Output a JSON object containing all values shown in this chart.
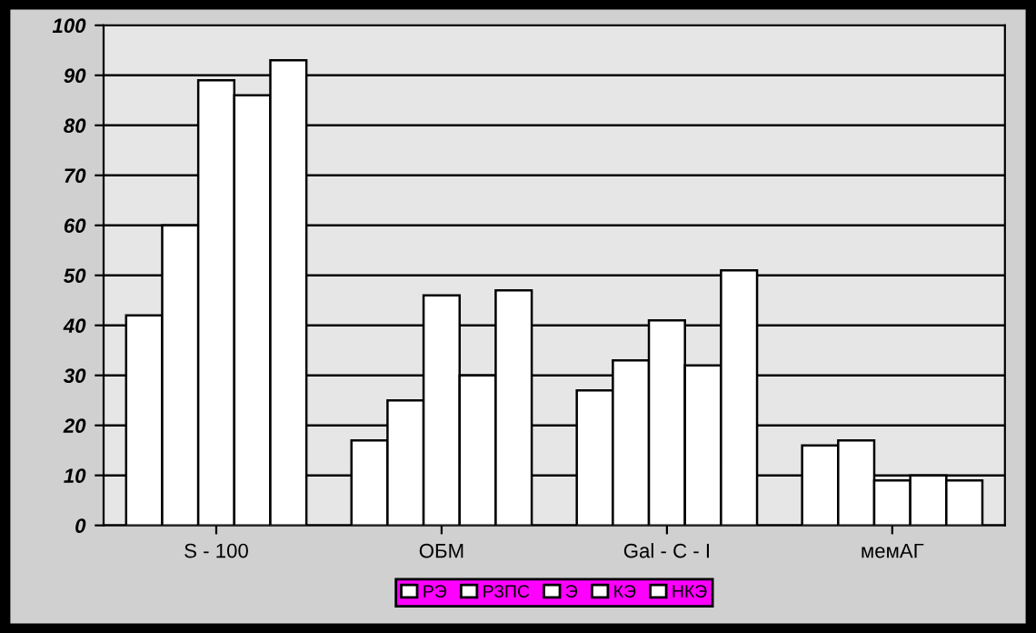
{
  "chart_data": {
    "type": "bar",
    "categories": [
      "S - 100",
      "ОБМ",
      "Gal - C - I",
      "мемАГ"
    ],
    "series": [
      {
        "name": "РЭ",
        "color": "#ffffff",
        "values": [
          42,
          17,
          27,
          16
        ]
      },
      {
        "name": "РЗПС",
        "color": "#ffffff",
        "values": [
          60,
          25,
          33,
          17
        ]
      },
      {
        "name": "Э",
        "color": "#ffffff",
        "values": [
          89,
          46,
          41,
          9
        ]
      },
      {
        "name": "КЭ",
        "color": "#ffffff",
        "values": [
          86,
          30,
          32,
          10
        ]
      },
      {
        "name": "НКЭ",
        "color": "#ffffff",
        "values": [
          93,
          47,
          51,
          9
        ]
      }
    ],
    "ylim": [
      0,
      100
    ],
    "yticks": [
      0,
      10,
      20,
      30,
      40,
      50,
      60,
      70,
      80,
      90,
      100
    ],
    "grid": "y",
    "legend": "bottom"
  }
}
